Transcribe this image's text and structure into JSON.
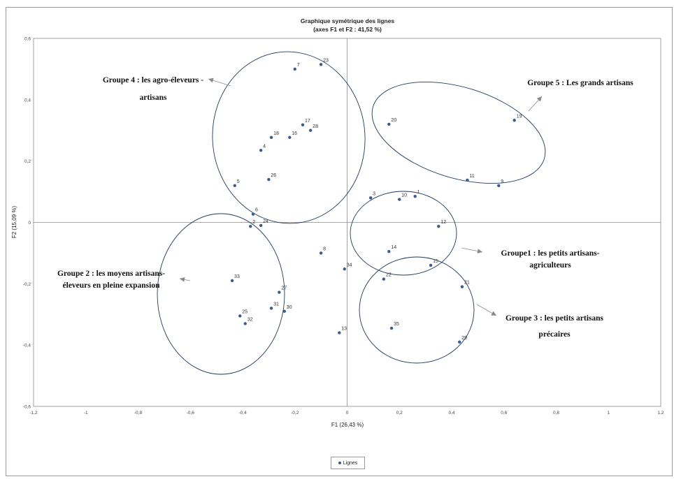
{
  "chart_data": {
    "type": "scatter",
    "title": "Graphique symétrique des lignes",
    "subtitle": "(axes F1 et F2 : 41,52 %)",
    "xlabel": "F1 (26,43 %)",
    "ylabel": "F2 (15,09 %)",
    "xlim": [
      -1.2,
      1.2
    ],
    "ylim": [
      -0.6,
      0.6
    ],
    "x_ticks": [
      "-1,2",
      "-1",
      "-0,8",
      "-0,6",
      "-0,4",
      "-0,2",
      "0",
      "0,2",
      "0,4",
      "0,6",
      "0,8",
      "1",
      "1,2"
    ],
    "y_ticks": [
      "0,6",
      "0,4",
      "0,2",
      "0",
      "-0,2",
      "-0,4",
      "-0,6"
    ],
    "grid": false,
    "legend_position": "bottom-center",
    "series": [
      {
        "name": "Lignes",
        "color": "#3a5c8a",
        "points": [
          {
            "label": "1",
            "x": 0.26,
            "y": 0.085
          },
          {
            "label": "2",
            "x": -0.37,
            "y": -0.013
          },
          {
            "label": "3",
            "x": 0.09,
            "y": 0.08
          },
          {
            "label": "4",
            "x": -0.33,
            "y": 0.235
          },
          {
            "label": "5",
            "x": -0.43,
            "y": 0.12
          },
          {
            "label": "6",
            "x": -0.36,
            "y": 0.027
          },
          {
            "label": "7",
            "x": -0.2,
            "y": 0.5
          },
          {
            "label": "8",
            "x": -0.1,
            "y": -0.1
          },
          {
            "label": "9",
            "x": 0.58,
            "y": 0.12
          },
          {
            "label": "10",
            "x": 0.2,
            "y": 0.075
          },
          {
            "label": "11",
            "x": 0.46,
            "y": 0.138
          },
          {
            "label": "12",
            "x": 0.35,
            "y": -0.013
          },
          {
            "label": "13",
            "x": -0.03,
            "y": -0.36
          },
          {
            "label": "14",
            "x": 0.16,
            "y": -0.095
          },
          {
            "label": "15",
            "x": 0.32,
            "y": -0.14
          },
          {
            "label": "16",
            "x": -0.22,
            "y": 0.277
          },
          {
            "label": "17",
            "x": -0.17,
            "y": 0.318
          },
          {
            "label": "18",
            "x": -0.29,
            "y": 0.277
          },
          {
            "label": "19",
            "x": 0.64,
            "y": 0.333
          },
          {
            "label": "20",
            "x": 0.16,
            "y": 0.32
          },
          {
            "label": "21",
            "x": 0.44,
            "y": -0.21
          },
          {
            "label": "22",
            "x": 0.14,
            "y": -0.185
          },
          {
            "label": "23",
            "x": -0.1,
            "y": 0.515
          },
          {
            "label": "24",
            "x": -0.33,
            "y": -0.01
          },
          {
            "label": "25",
            "x": -0.41,
            "y": -0.305
          },
          {
            "label": "26",
            "x": -0.3,
            "y": 0.14
          },
          {
            "label": "27",
            "x": -0.26,
            "y": -0.228
          },
          {
            "label": "28",
            "x": -0.14,
            "y": 0.3
          },
          {
            "label": "29",
            "x": 0.43,
            "y": -0.39
          },
          {
            "label": "30",
            "x": -0.24,
            "y": -0.29
          },
          {
            "label": "31",
            "x": -0.29,
            "y": -0.28
          },
          {
            "label": "32",
            "x": -0.39,
            "y": -0.33
          },
          {
            "label": "33",
            "x": -0.44,
            "y": -0.19
          },
          {
            "label": "34",
            "x": -0.01,
            "y": -0.152
          },
          {
            "label": "35",
            "x": 0.17,
            "y": -0.345
          }
        ]
      }
    ],
    "groups": [
      {
        "label_lines": [
          "Groupe 4 : les agro-éleveurs -",
          "artisans"
        ]
      },
      {
        "label_lines": [
          "Groupe 5 : Les grands artisans"
        ]
      },
      {
        "label_lines": [
          "Groupe1 : les petits artisans-",
          "agriculteurs"
        ]
      },
      {
        "label_lines": [
          "Groupe 2 : les moyens artisans-",
          "éleveurs en pleine expansion"
        ]
      },
      {
        "label_lines": [
          "Groupe 3 : les petits artisans",
          "précaires"
        ]
      }
    ]
  }
}
